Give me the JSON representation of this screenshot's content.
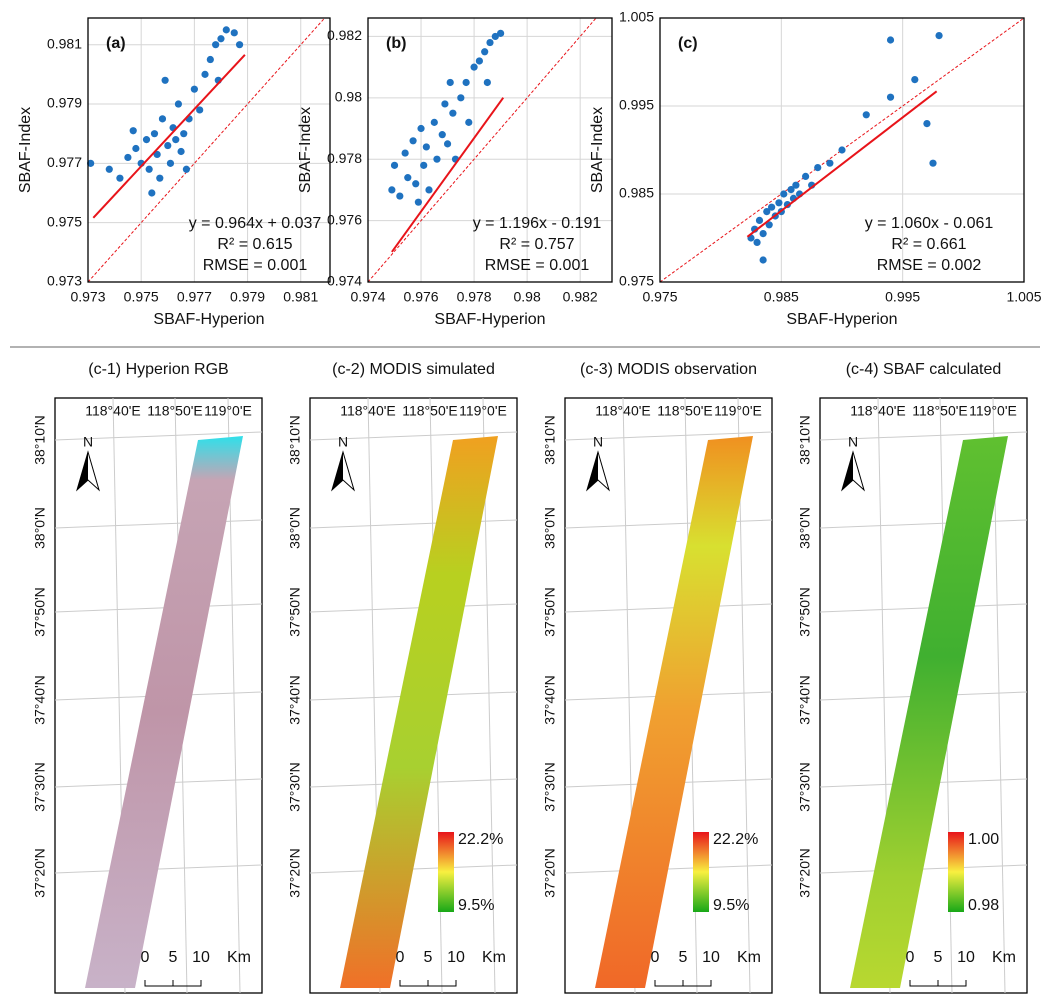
{
  "chart_data": [
    {
      "type": "scatter",
      "panel_label": "(a)",
      "x_label": "SBAF-Hyperion",
      "y_label": "SBAF-Index",
      "equation": "y = 0.964x + 0.037",
      "r2": "R² = 0.615",
      "rmse": "RMSE = 0.001",
      "color": "#1f72c0",
      "trendline": {
        "slope": 0.964,
        "intercept": 0.037,
        "x_range": [
          0.9732,
          0.9789
        ],
        "color": "#e8141a"
      },
      "identity_line": true,
      "grid": true,
      "x": [
        0.9731,
        0.9738,
        0.9742,
        0.9745,
        0.9748,
        0.975,
        0.9752,
        0.9753,
        0.9755,
        0.9756,
        0.9757,
        0.9758,
        0.976,
        0.9761,
        0.9762,
        0.9763,
        0.9764,
        0.9765,
        0.9766,
        0.9767,
        0.9768,
        0.977,
        0.9772,
        0.9774,
        0.9776,
        0.9778,
        0.978,
        0.9782,
        0.9785,
        0.9787,
        0.9779,
        0.9759,
        0.9754,
        0.9747
      ],
      "values": [
        0.977,
        0.9768,
        0.9765,
        0.9772,
        0.9775,
        0.977,
        0.9778,
        0.9768,
        0.978,
        0.9773,
        0.9765,
        0.9785,
        0.9776,
        0.977,
        0.9782,
        0.9778,
        0.979,
        0.9774,
        0.978,
        0.9768,
        0.9785,
        0.9795,
        0.9788,
        0.98,
        0.9805,
        0.981,
        0.9812,
        0.9815,
        0.9814,
        0.981,
        0.9798,
        0.9798,
        0.976,
        0.9781
      ],
      "xlim": [
        0.973,
        0.9821
      ],
      "ylim": [
        0.973,
        0.9819
      ],
      "xticks": [
        0.973,
        0.975,
        0.977,
        0.979,
        0.981
      ],
      "yticks": [
        0.973,
        0.975,
        0.977,
        0.979,
        0.981
      ]
    },
    {
      "type": "scatter",
      "panel_label": "(b)",
      "x_label": "SBAF-Hyperion",
      "y_label": "SBAF-Index",
      "equation": "y = 1.196x - 0.191",
      "r2": "R² = 0.757",
      "rmse": "RMSE = 0.001",
      "color": "#1f72c0",
      "trendline": {
        "slope": 1.196,
        "intercept": -0.191,
        "x_range": [
          0.9749,
          0.9791
        ],
        "color": "#e8141a"
      },
      "identity_line": true,
      "grid": true,
      "x": [
        0.9749,
        0.975,
        0.9752,
        0.9754,
        0.9755,
        0.9757,
        0.9758,
        0.976,
        0.9761,
        0.9762,
        0.9763,
        0.9765,
        0.9766,
        0.9768,
        0.9769,
        0.977,
        0.9772,
        0.9773,
        0.9775,
        0.9777,
        0.9778,
        0.978,
        0.9782,
        0.9784,
        0.9786,
        0.9788,
        0.979,
        0.9785,
        0.9759,
        0.9771
      ],
      "values": [
        0.977,
        0.9778,
        0.9768,
        0.9782,
        0.9774,
        0.9786,
        0.9772,
        0.979,
        0.9778,
        0.9784,
        0.977,
        0.9792,
        0.978,
        0.9788,
        0.9798,
        0.9785,
        0.9795,
        0.978,
        0.98,
        0.9805,
        0.9792,
        0.981,
        0.9812,
        0.9815,
        0.9818,
        0.982,
        0.9821,
        0.9805,
        0.9766,
        0.9805
      ],
      "xlim": [
        0.974,
        0.9832
      ],
      "ylim": [
        0.974,
        0.9826
      ],
      "xticks": [
        0.974,
        0.976,
        0.978,
        0.98,
        0.982
      ],
      "yticks": [
        0.974,
        0.976,
        0.978,
        0.98,
        0.982
      ]
    },
    {
      "type": "scatter",
      "panel_label": "(c)",
      "x_label": "SBAF-Hyperion",
      "y_label": "SBAF-Index",
      "equation": "y = 1.060x - 0.061",
      "r2": "R² = 0.661",
      "rmse": "RMSE = 0.002",
      "color": "#1f72c0",
      "trendline": {
        "slope": 1.06,
        "intercept": -0.061,
        "x_range": [
          0.9822,
          0.9978
        ],
        "color": "#e8141a"
      },
      "identity_line": true,
      "grid": true,
      "x": [
        0.9825,
        0.9828,
        0.983,
        0.9832,
        0.9835,
        0.9838,
        0.984,
        0.9842,
        0.9845,
        0.9848,
        0.985,
        0.9852,
        0.9855,
        0.9858,
        0.986,
        0.9862,
        0.9865,
        0.987,
        0.9875,
        0.988,
        0.989,
        0.99,
        0.992,
        0.994,
        0.996,
        0.9975,
        0.998,
        0.994,
        0.997,
        0.9835
      ],
      "values": [
        0.98,
        0.981,
        0.9795,
        0.982,
        0.9805,
        0.983,
        0.9815,
        0.9835,
        0.9825,
        0.984,
        0.983,
        0.985,
        0.9838,
        0.9855,
        0.9845,
        0.986,
        0.985,
        0.987,
        0.986,
        0.988,
        0.9885,
        0.99,
        0.994,
        0.996,
        0.998,
        0.9885,
        1.003,
        1.0025,
        0.993,
        0.9775
      ],
      "xlim": [
        0.975,
        1.005
      ],
      "ylim": [
        0.975,
        1.005
      ],
      "xticks": [
        0.975,
        0.985,
        0.995,
        1.005
      ],
      "yticks": [
        0.975,
        0.985,
        0.995,
        1.005
      ]
    }
  ],
  "maps": [
    {
      "title": "(c-1) Hyperion RGB",
      "north": "N",
      "lon_labels": [
        "118°40'E",
        "118°50'E",
        "119°0'E"
      ],
      "lat_labels": [
        "38°10'N",
        "38°0'N",
        "37°50'N",
        "37°40'N",
        "37°30'N",
        "37°20'N"
      ],
      "scale": [
        "0",
        "5",
        "10",
        "Km"
      ]
    },
    {
      "title": "(c-2) MODIS simulated",
      "north": "N",
      "lon_labels": [
        "118°40'E",
        "118°50'E",
        "119°0'E"
      ],
      "lat_labels": [
        "38°10'N",
        "38°0'N",
        "37°50'N",
        "37°40'N",
        "37°30'N",
        "37°20'N"
      ],
      "scale": [
        "0",
        "5",
        "10",
        "Km"
      ],
      "legend": {
        "high": "22.2%",
        "low": "9.5%"
      }
    },
    {
      "title": "(c-3) MODIS observation",
      "north": "N",
      "lon_labels": [
        "118°40'E",
        "118°50'E",
        "119°0'E"
      ],
      "lat_labels": [
        "38°10'N",
        "38°0'N",
        "37°50'N",
        "37°40'N",
        "37°30'N",
        "37°20'N"
      ],
      "scale": [
        "0",
        "5",
        "10",
        "Km"
      ],
      "legend": {
        "high": "22.2%",
        "low": "9.5%"
      }
    },
    {
      "title": "(c-4) SBAF calculated",
      "north": "N",
      "lon_labels": [
        "118°40'E",
        "118°50'E",
        "119°0'E"
      ],
      "lat_labels": [
        "38°10'N",
        "38°0'N",
        "37°50'N",
        "37°40'N",
        "37°30'N",
        "37°20'N"
      ],
      "scale": [
        "0",
        "5",
        "10",
        "Km"
      ],
      "legend": {
        "high": "1.00",
        "low": "0.98"
      }
    }
  ]
}
